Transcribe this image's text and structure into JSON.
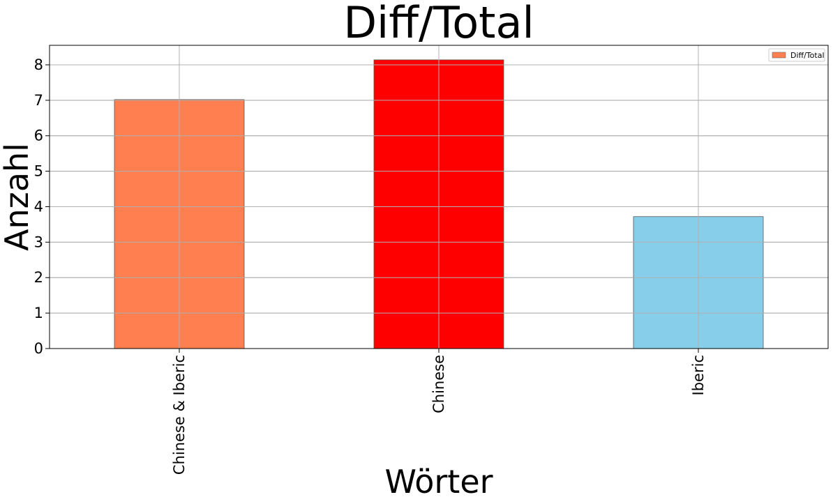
{
  "chart_data": {
    "type": "bar",
    "title": "Diff/Total",
    "xlabel": "Wörter",
    "ylabel": "Anzahl",
    "categories": [
      "Chinese & Iberic",
      "Chinese",
      "Iberic"
    ],
    "series": [
      {
        "name": "Diff/Total",
        "values": [
          7.02,
          8.14,
          3.72
        ]
      }
    ],
    "bar_colors": [
      "#ff7f50",
      "#ff0000",
      "#87ceeb"
    ],
    "legend_swatch_color": "#ff7f50",
    "ylim": [
      0,
      8.55
    ],
    "yticks": [
      0,
      1,
      2,
      3,
      4,
      5,
      6,
      7,
      8
    ],
    "grid": true,
    "legend_position": "top-right"
  }
}
